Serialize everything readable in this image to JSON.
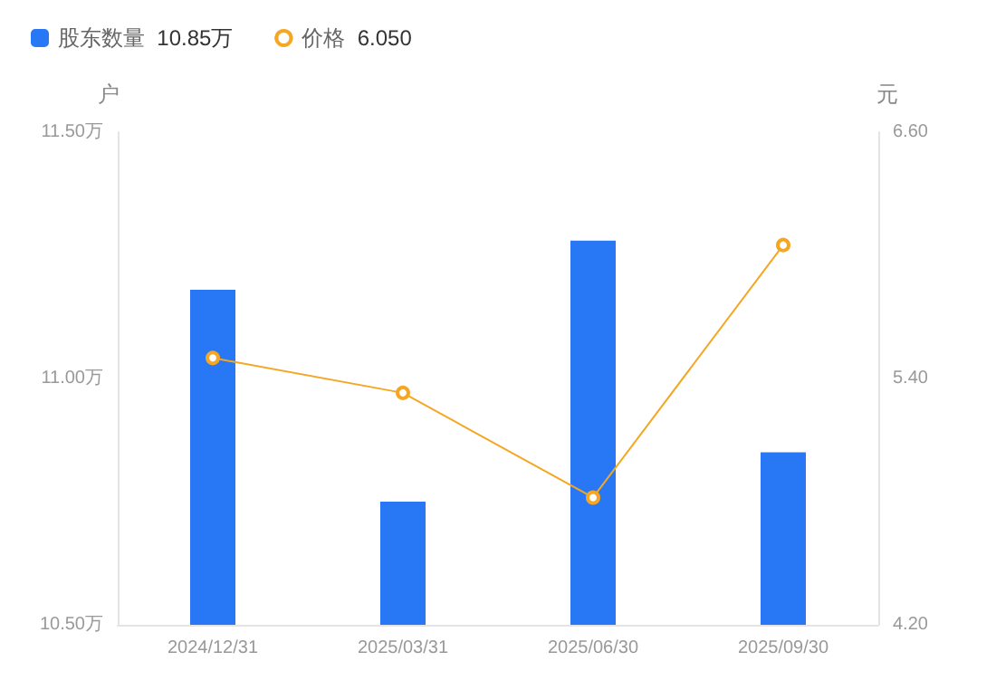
{
  "chart_data": {
    "type": "bar",
    "categories": [
      "2024/12/31",
      "2025/03/31",
      "2025/06/30",
      "2025/09/30"
    ],
    "series": [
      {
        "name": "股东数量",
        "color": "#2878f6",
        "values": [
          11.18,
          10.75,
          11.28,
          10.85
        ]
      },
      {
        "name": "价格",
        "type": "line",
        "axis": "y2",
        "color": "#f5a623",
        "marker": "circle",
        "values": [
          5.5,
          5.33,
          4.82,
          6.05
        ]
      }
    ],
    "annotations": [
      "10.85万",
      "6.050"
    ],
    "ylabel": "户",
    "y2label": "元",
    "ylim": [
      10.5,
      11.5
    ],
    "yticks": [
      {
        "value": 10.5,
        "label": "10.50万"
      },
      {
        "value": 11.0,
        "label": "11.00万"
      },
      {
        "value": 11.5,
        "label": "11.50万"
      }
    ],
    "y2lim": [
      4.2,
      6.6
    ],
    "y2ticks": [
      {
        "value": 4.2,
        "label": "4.20"
      },
      {
        "value": 5.4,
        "label": "5.40"
      },
      {
        "value": 6.6,
        "label": "6.60"
      }
    ],
    "grid": false,
    "legend": "top left"
  }
}
